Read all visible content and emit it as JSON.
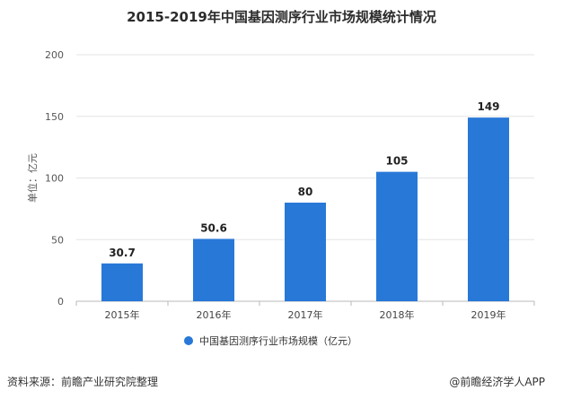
{
  "chart_data": {
    "type": "bar",
    "title": "2015-2019年中国基因测序行业市场规模统计情况",
    "ylabel": "单位：亿元",
    "xlabel": "",
    "categories": [
      "2015年",
      "2016年",
      "2017年",
      "2018年",
      "2019年"
    ],
    "series": [
      {
        "name": "中国基因测序行业市场规模（亿元）",
        "values": [
          30.7,
          50.6,
          80,
          105,
          149
        ],
        "color": "#2878d8"
      }
    ],
    "data_labels": [
      "30.7",
      "50.6",
      "80",
      "105",
      "149"
    ],
    "ylim": [
      0,
      200
    ],
    "yticks": [
      0,
      50,
      100,
      150,
      200
    ],
    "grid": true,
    "legend_position": "bottom"
  },
  "footer": {
    "source": "资料来源：前瞻产业研究院整理",
    "credit": "@前瞻经济学人APP"
  }
}
